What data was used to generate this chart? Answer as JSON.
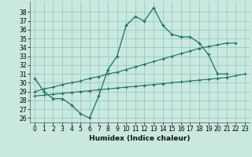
{
  "xlabel": "Humidex (Indice chaleur)",
  "bg_color": "#c8e8e0",
  "grid_color": "#90c4b8",
  "line_color": "#1e6e64",
  "xlim": [
    -0.5,
    23.5
  ],
  "ylim": [
    25.5,
    39.2
  ],
  "xticks": [
    0,
    1,
    2,
    3,
    4,
    5,
    6,
    7,
    8,
    9,
    10,
    11,
    12,
    13,
    14,
    15,
    16,
    17,
    18,
    19,
    20,
    21,
    22,
    23
  ],
  "yticks": [
    26,
    27,
    28,
    29,
    30,
    31,
    32,
    33,
    34,
    35,
    36,
    37,
    38
  ],
  "curve_x": [
    0,
    1,
    2,
    3,
    4,
    5,
    6,
    7,
    8,
    9,
    10,
    11,
    12,
    13,
    14,
    15,
    16,
    17,
    18,
    19,
    20,
    21
  ],
  "curve_y": [
    30.5,
    29.0,
    28.2,
    28.2,
    27.5,
    26.5,
    26.0,
    28.5,
    31.5,
    33.0,
    36.5,
    37.5,
    37.0,
    38.5,
    36.5,
    35.5,
    35.2,
    35.2,
    34.5,
    33.2,
    31.0,
    31.0
  ],
  "diag1_x": [
    0,
    1,
    2,
    3,
    4,
    5,
    6,
    7,
    8,
    9,
    10,
    11,
    12,
    13,
    14,
    15,
    16,
    17,
    18,
    19,
    20,
    21,
    22
  ],
  "diag1_y": [
    29.0,
    29.3,
    29.5,
    29.8,
    30.0,
    30.2,
    30.5,
    30.7,
    31.0,
    31.2,
    31.5,
    31.8,
    32.1,
    32.4,
    32.7,
    33.0,
    33.3,
    33.6,
    33.9,
    34.1,
    34.3,
    34.5,
    34.5
  ],
  "diag2_x": [
    0,
    1,
    2,
    3,
    4,
    5,
    6,
    7,
    8,
    9,
    10,
    11,
    12,
    13,
    14,
    15,
    16,
    17,
    18,
    19,
    20,
    21,
    22,
    23
  ],
  "diag2_y": [
    28.5,
    28.6,
    28.7,
    28.8,
    28.9,
    29.0,
    29.1,
    29.2,
    29.3,
    29.4,
    29.5,
    29.6,
    29.7,
    29.8,
    29.9,
    30.0,
    30.1,
    30.2,
    30.3,
    30.4,
    30.5,
    30.6,
    30.8,
    31.0
  ]
}
